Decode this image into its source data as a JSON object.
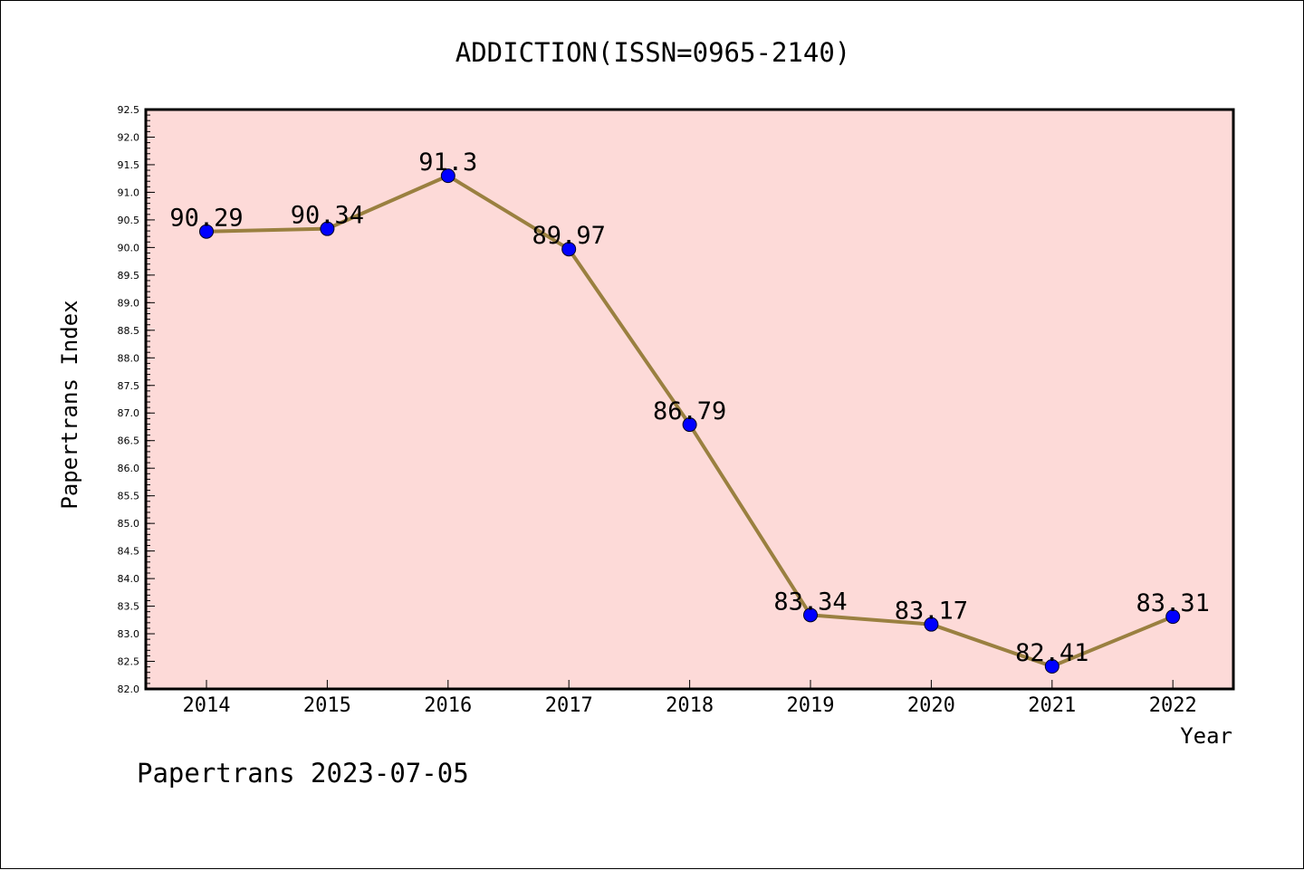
{
  "chart_data": {
    "type": "line",
    "title": "ADDICTION(ISSN=0965-2140)",
    "xlabel": "Year",
    "ylabel": "Papertrans Index",
    "footer": "Papertrans 2023-07-05",
    "categories": [
      "2014",
      "2015",
      "2016",
      "2017",
      "2018",
      "2019",
      "2020",
      "2021",
      "2022"
    ],
    "values": [
      90.29,
      90.34,
      91.3,
      89.97,
      86.79,
      83.34,
      83.17,
      82.41,
      83.31
    ],
    "data_labels": [
      "90.29",
      "90.34",
      "91.3",
      "89.97",
      "86.79",
      "83.34",
      "83.17",
      "82.41",
      "83.31"
    ],
    "ylim": [
      82.0,
      92.5
    ],
    "y_ticks": [
      "82.0",
      "82.5",
      "83.0",
      "83.5",
      "84.0",
      "84.5",
      "85.0",
      "85.5",
      "86.0",
      "86.5",
      "87.0",
      "87.5",
      "88.0",
      "88.5",
      "89.0",
      "89.5",
      "90.0",
      "90.5",
      "91.0",
      "91.5",
      "92.0",
      "92.5"
    ],
    "grid": false,
    "colors": {
      "plot_background": "#fddad8",
      "line": "#9a8040",
      "marker": "#0000ff",
      "axis": "#000000"
    }
  }
}
